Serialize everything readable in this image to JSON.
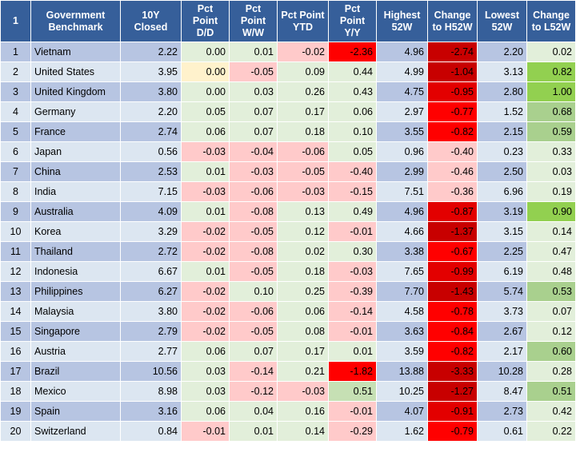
{
  "headers": [
    "1",
    "Government Benchmark",
    "10Y Closed",
    "Pct Point D/D",
    "Pct Point W/W",
    "Pct Point YTD",
    "Pct Point Y/Y",
    "Highest 52W",
    "Change to H52W",
    "Lowest 52W",
    "Change to L52W"
  ],
  "rows": [
    {
      "idx": "1",
      "country": "Vietnam",
      "close": "2.22",
      "dd": "0.00",
      "ww": "0.01",
      "ytd": "-0.02",
      "yy": "-2.36",
      "high": "4.96",
      "ch_high": "-2.74",
      "low": "2.20",
      "ch_low": "0.02"
    },
    {
      "idx": "2",
      "country": "United States",
      "close": "3.95",
      "dd": "0.00",
      "ww": "-0.05",
      "ytd": "0.09",
      "yy": "0.44",
      "high": "4.99",
      "ch_high": "-1.04",
      "low": "3.13",
      "ch_low": "0.82"
    },
    {
      "idx": "3",
      "country": "United Kingdom",
      "close": "3.80",
      "dd": "0.00",
      "ww": "0.03",
      "ytd": "0.26",
      "yy": "0.43",
      "high": "4.75",
      "ch_high": "-0.95",
      "low": "2.80",
      "ch_low": "1.00"
    },
    {
      "idx": "4",
      "country": "Germany",
      "close": "2.20",
      "dd": "0.05",
      "ww": "0.07",
      "ytd": "0.17",
      "yy": "0.06",
      "high": "2.97",
      "ch_high": "-0.77",
      "low": "1.52",
      "ch_low": "0.68"
    },
    {
      "idx": "5",
      "country": "France",
      "close": "2.74",
      "dd": "0.06",
      "ww": "0.07",
      "ytd": "0.18",
      "yy": "0.10",
      "high": "3.55",
      "ch_high": "-0.82",
      "low": "2.15",
      "ch_low": "0.59"
    },
    {
      "idx": "6",
      "country": "Japan",
      "close": "0.56",
      "dd": "-0.03",
      "ww": "-0.04",
      "ytd": "-0.06",
      "yy": "0.05",
      "high": "0.96",
      "ch_high": "-0.40",
      "low": "0.23",
      "ch_low": "0.33"
    },
    {
      "idx": "7",
      "country": "China",
      "close": "2.53",
      "dd": "0.01",
      "ww": "-0.03",
      "ytd": "-0.05",
      "yy": "-0.40",
      "high": "2.99",
      "ch_high": "-0.46",
      "low": "2.50",
      "ch_low": "0.03"
    },
    {
      "idx": "8",
      "country": "India",
      "close": "7.15",
      "dd": "-0.03",
      "ww": "-0.06",
      "ytd": "-0.03",
      "yy": "-0.15",
      "high": "7.51",
      "ch_high": "-0.36",
      "low": "6.96",
      "ch_low": "0.19"
    },
    {
      "idx": "9",
      "country": "Australia",
      "close": "4.09",
      "dd": "0.01",
      "ww": "-0.08",
      "ytd": "0.13",
      "yy": "0.49",
      "high": "4.96",
      "ch_high": "-0.87",
      "low": "3.19",
      "ch_low": "0.90"
    },
    {
      "idx": "10",
      "country": "Korea",
      "close": "3.29",
      "dd": "-0.02",
      "ww": "-0.05",
      "ytd": "0.12",
      "yy": "-0.01",
      "high": "4.66",
      "ch_high": "-1.37",
      "low": "3.15",
      "ch_low": "0.14"
    },
    {
      "idx": "11",
      "country": "Thailand",
      "close": "2.72",
      "dd": "-0.02",
      "ww": "-0.08",
      "ytd": "0.02",
      "yy": "0.30",
      "high": "3.38",
      "ch_high": "-0.67",
      "low": "2.25",
      "ch_low": "0.47"
    },
    {
      "idx": "12",
      "country": "Indonesia",
      "close": "6.67",
      "dd": "0.01",
      "ww": "-0.05",
      "ytd": "0.18",
      "yy": "-0.03",
      "high": "7.65",
      "ch_high": "-0.99",
      "low": "6.19",
      "ch_low": "0.48"
    },
    {
      "idx": "13",
      "country": "Philippines",
      "close": "6.27",
      "dd": "-0.02",
      "ww": "0.10",
      "ytd": "0.25",
      "yy": "-0.39",
      "high": "7.70",
      "ch_high": "-1.43",
      "low": "5.74",
      "ch_low": "0.53"
    },
    {
      "idx": "14",
      "country": "Malaysia",
      "close": "3.80",
      "dd": "-0.02",
      "ww": "-0.06",
      "ytd": "0.06",
      "yy": "-0.14",
      "high": "4.58",
      "ch_high": "-0.78",
      "low": "3.73",
      "ch_low": "0.07"
    },
    {
      "idx": "15",
      "country": "Singapore",
      "close": "2.79",
      "dd": "-0.02",
      "ww": "-0.05",
      "ytd": "0.08",
      "yy": "-0.01",
      "high": "3.63",
      "ch_high": "-0.84",
      "low": "2.67",
      "ch_low": "0.12"
    },
    {
      "idx": "16",
      "country": "Austria",
      "close": "2.77",
      "dd": "0.06",
      "ww": "0.07",
      "ytd": "0.17",
      "yy": "0.01",
      "high": "3.59",
      "ch_high": "-0.82",
      "low": "2.17",
      "ch_low": "0.60"
    },
    {
      "idx": "17",
      "country": "Brazil",
      "close": "10.56",
      "dd": "0.03",
      "ww": "-0.14",
      "ytd": "0.21",
      "yy": "-1.82",
      "high": "13.88",
      "ch_high": "-3.33",
      "low": "10.28",
      "ch_low": "0.28"
    },
    {
      "idx": "18",
      "country": "Mexico",
      "close": "8.98",
      "dd": "0.03",
      "ww": "-0.12",
      "ytd": "-0.03",
      "yy": "0.51",
      "high": "10.25",
      "ch_high": "-1.27",
      "low": "8.47",
      "ch_low": "0.51"
    },
    {
      "idx": "19",
      "country": "Spain",
      "close": "3.16",
      "dd": "0.06",
      "ww": "0.04",
      "ytd": "0.16",
      "yy": "-0.01",
      "high": "4.07",
      "ch_high": "-0.91",
      "low": "2.73",
      "ch_low": "0.42"
    },
    {
      "idx": "20",
      "country": "Switzerland",
      "close": "0.84",
      "dd": "-0.01",
      "ww": "0.01",
      "ytd": "0.14",
      "yy": "-0.29",
      "high": "1.62",
      "ch_high": "-0.79",
      "low": "0.61",
      "ch_low": "0.22"
    }
  ],
  "colors": {
    "header_bg": "#365f9a",
    "row_shade_dark": "#b7c5e2",
    "row_shade_light": "#dce6f1",
    "positive": "#e2efda",
    "negative": "#ffcaca",
    "neutral": "#fff2cc",
    "strong_negative": "#ff0000",
    "strong_positive": "#92d050"
  }
}
